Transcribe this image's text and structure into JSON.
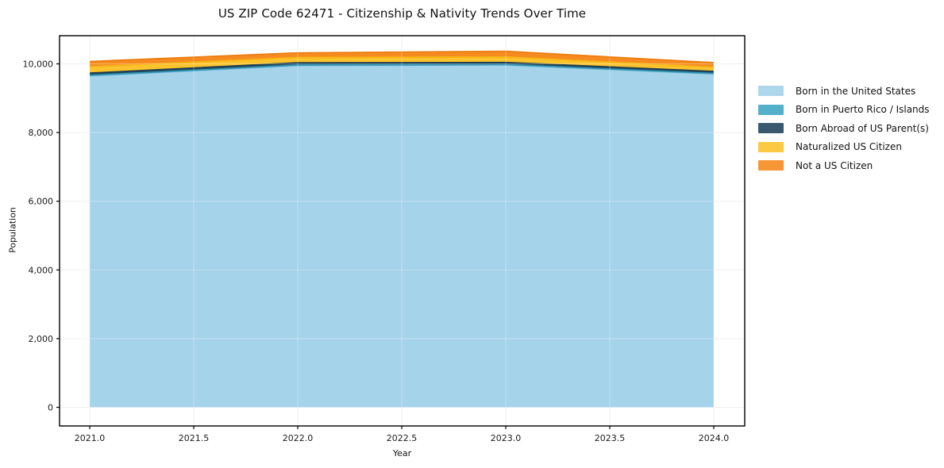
{
  "title": "US ZIP Code 62471 - Citizenship & Nativity Trends Over Time",
  "chart_data": {
    "type": "area",
    "stacked": true,
    "title": "US ZIP Code 62471 - Citizenship & Nativity Trends Over Time",
    "xlabel": "Year",
    "ylabel": "Population",
    "x": [
      2021,
      2022,
      2023,
      2024
    ],
    "series": [
      {
        "name": "Born in the United States",
        "fill": "#a5d3ea",
        "line": "#7fbedd",
        "values": [
          9650,
          9950,
          9965,
          9705
        ]
      },
      {
        "name": "Born in Puerto Rico / Islands",
        "fill": "#41a7c4",
        "line": "#2f96b5",
        "values": [
          15,
          15,
          15,
          15
        ]
      },
      {
        "name": "Born Abroad of US Parent(s)",
        "fill": "#23485e",
        "line": "#1d3f53",
        "values": [
          65,
          65,
          60,
          60
        ]
      },
      {
        "name": "Naturalized US Citizen",
        "fill": "#fcc32d",
        "line": "#f5b517",
        "values": [
          185,
          155,
          160,
          120
        ]
      },
      {
        "name": "Not a US Citizen",
        "fill": "#f68b1f",
        "line": "#ec7d11",
        "values": [
          155,
          135,
          165,
          135
        ]
      }
    ],
    "totals": [
      10070,
      10320,
      10365,
      10035
    ],
    "yticks": [
      0,
      2000,
      4000,
      6000,
      8000,
      10000
    ],
    "ytick_labels": [
      "0",
      "2,000",
      "4,000",
      "6,000",
      "8,000",
      "10,000"
    ],
    "xticks": [
      2021.0,
      2021.5,
      2022.0,
      2022.5,
      2023.0,
      2023.5,
      2024.0
    ],
    "xtick_labels": [
      "2021.0",
      "2021.5",
      "2022.0",
      "2022.5",
      "2023.0",
      "2023.5",
      "2024.0"
    ],
    "xlim": [
      2020.85,
      2024.15
    ],
    "ylim": [
      -545,
      10820
    ],
    "grid": true,
    "legend_position": "right",
    "frame_color": "#000000",
    "grid_color": "#ebebeb"
  }
}
